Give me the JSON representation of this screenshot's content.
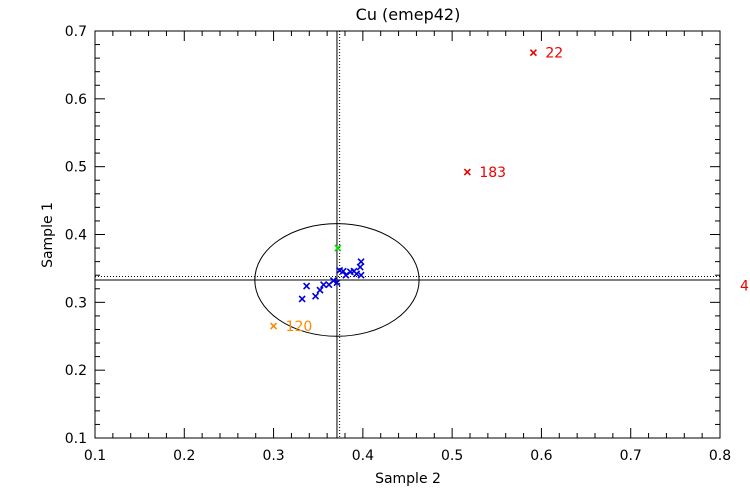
{
  "chart_data": {
    "type": "scatter",
    "title": "Cu (emep42)",
    "xlabel": "Sample 2",
    "ylabel": "Sample 1",
    "xlim": [
      0.1,
      0.8
    ],
    "ylim": [
      0.1,
      0.7
    ],
    "x_ticks": [
      "0.1",
      "0.2",
      "0.3",
      "0.4",
      "0.5",
      "0.6",
      "0.7",
      "0.8"
    ],
    "y_ticks": [
      "0.1",
      "0.2",
      "0.3",
      "0.4",
      "0.5",
      "0.6",
      "0.7"
    ],
    "colors": {
      "main": "#0000dd",
      "outlier_high": "#ee0000",
      "outlier_low": "#ff8800",
      "reference": "#00dd00",
      "axes": "#000000"
    },
    "reference_lines": {
      "x_mean": 0.371,
      "x_median": 0.374,
      "y_mean": 0.333,
      "y_median": 0.338
    },
    "ellipse": {
      "cx": 0.371,
      "cy": 0.333,
      "rx": 0.092,
      "ry": 0.083
    },
    "series": [
      {
        "group": "main",
        "points": [
          {
            "x": 0.332,
            "y": 0.305
          },
          {
            "x": 0.337,
            "y": 0.324
          },
          {
            "x": 0.347,
            "y": 0.309
          },
          {
            "x": 0.352,
            "y": 0.318
          },
          {
            "x": 0.356,
            "y": 0.326
          },
          {
            "x": 0.362,
            "y": 0.326
          },
          {
            "x": 0.367,
            "y": 0.332
          },
          {
            "x": 0.371,
            "y": 0.329
          },
          {
            "x": 0.374,
            "y": 0.347
          },
          {
            "x": 0.378,
            "y": 0.346
          },
          {
            "x": 0.381,
            "y": 0.34
          },
          {
            "x": 0.386,
            "y": 0.345
          },
          {
            "x": 0.39,
            "y": 0.346
          },
          {
            "x": 0.393,
            "y": 0.342
          },
          {
            "x": 0.397,
            "y": 0.352
          },
          {
            "x": 0.398,
            "y": 0.34
          },
          {
            "x": 0.398,
            "y": 0.36
          }
        ]
      },
      {
        "group": "reference",
        "points": [
          {
            "x": 0.372,
            "y": 0.38
          }
        ]
      },
      {
        "group": "outlier_high",
        "points": [
          {
            "x": 0.591,
            "y": 0.668,
            "label": "22"
          },
          {
            "x": 0.517,
            "y": 0.492,
            "label": "183"
          }
        ]
      },
      {
        "group": "outlier_low",
        "points": [
          {
            "x": 0.3,
            "y": 0.265,
            "label": "120"
          }
        ]
      }
    ],
    "offscale_labels": [
      {
        "label": "4",
        "y": 0.325
      }
    ]
  }
}
